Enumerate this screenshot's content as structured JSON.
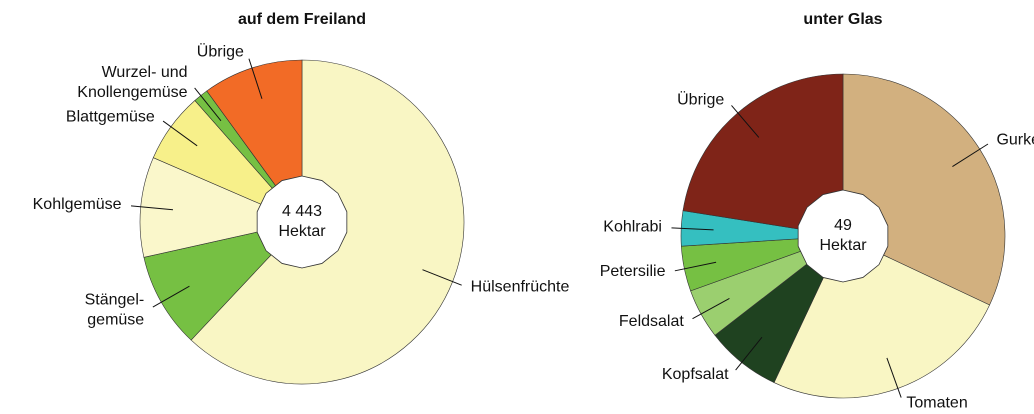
{
  "chart_data": [
    {
      "type": "pie",
      "title": "auf dem Freiland",
      "center_label": [
        "4 443",
        "Hektar"
      ],
      "categories": [
        "Hülsenfrüchte",
        [
          "Stängel-",
          "gemüse"
        ],
        "Kohlgemüse",
        "Blattgemüse",
        [
          "Wurzel- und",
          "Knollengemüse"
        ],
        "Übrige"
      ],
      "values": [
        62,
        9.5,
        10,
        7,
        1.5,
        10
      ],
      "colors": [
        "#f9f6c4",
        "#76c043",
        "#faf7cb",
        "#f7f08a",
        "#76c043",
        "#f26b26"
      ]
    },
    {
      "type": "pie",
      "title": "unter Glas",
      "center_label": [
        "49",
        "Hektar"
      ],
      "categories": [
        "Gurken",
        "Tomaten",
        "Kopfsalat",
        "Feldsalat",
        "Petersilie",
        "Kohlrabi",
        "Übrige"
      ],
      "values": [
        32,
        25,
        7.5,
        5,
        4.5,
        3.5,
        22.5
      ],
      "colors": [
        "#d2b07f",
        "#f9f6c4",
        "#1f4220",
        "#9bcf6f",
        "#76c043",
        "#35bfc0",
        "#7f2418"
      ]
    }
  ]
}
